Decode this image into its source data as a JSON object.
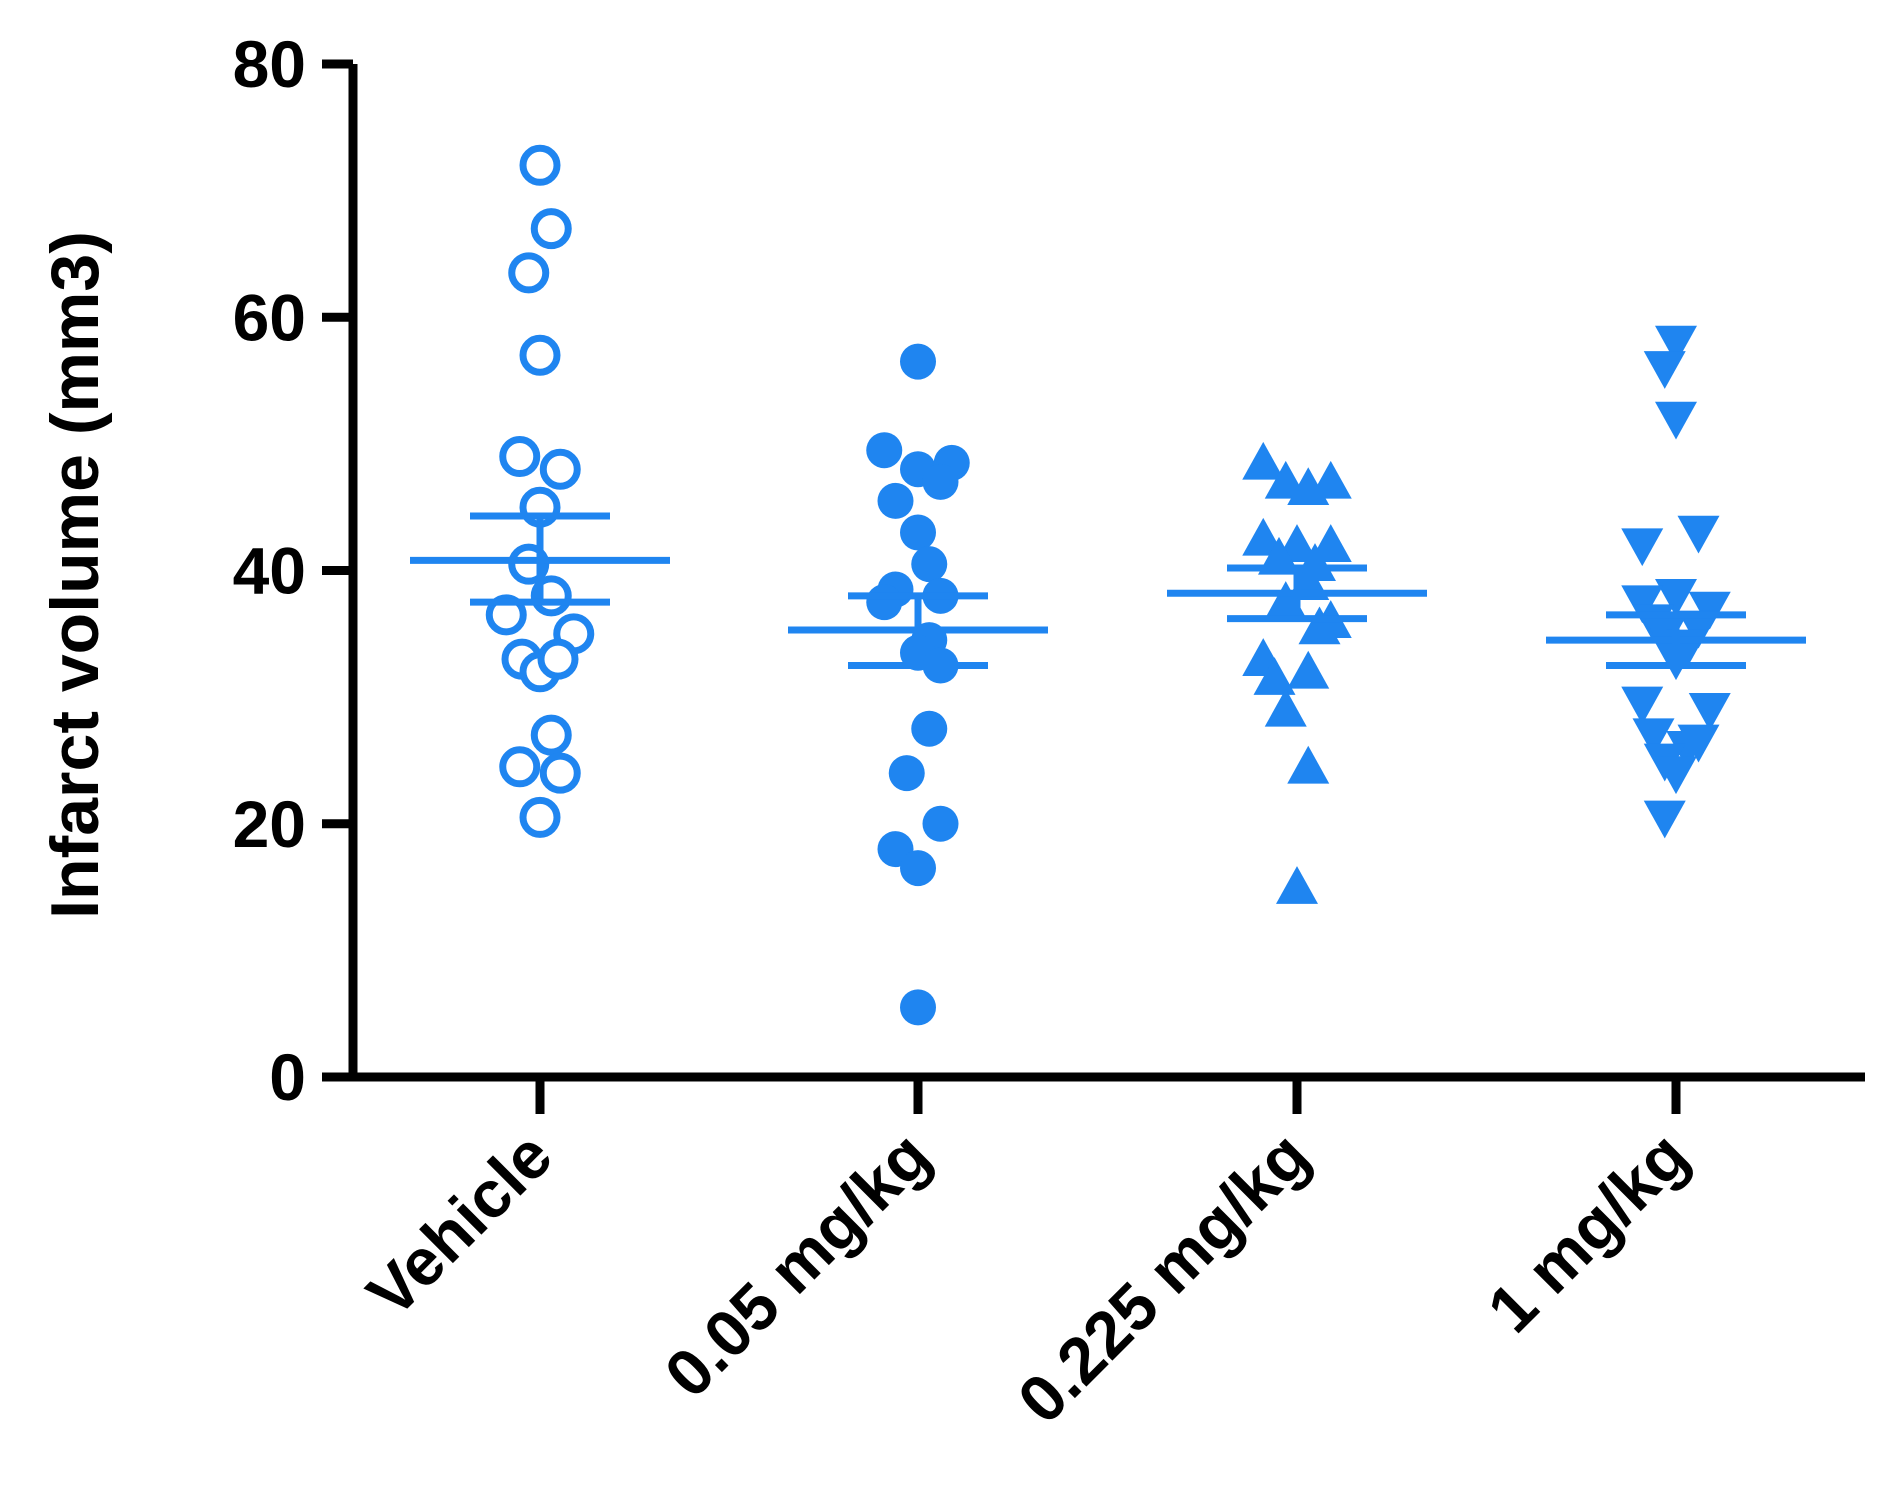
{
  "chart_data": {
    "type": "scatter",
    "title": "",
    "xlabel": "",
    "ylabel": "Infarct volume (mm3)",
    "ylim": [
      0,
      80
    ],
    "yticks": [
      0,
      20,
      40,
      60,
      80
    ],
    "categories": [
      "Vehicle",
      "0.05 mg/kg",
      "0.225 mg/kg",
      "1 mg/kg"
    ],
    "color": "#1f85f0",
    "series": [
      {
        "name": "Vehicle",
        "marker": "circle-open",
        "values": [
          72,
          67,
          63.5,
          57,
          49,
          48,
          45,
          40.5,
          38,
          36.5,
          35,
          33,
          32,
          33,
          27,
          24.5,
          24,
          20.5
        ],
        "offsets": [
          0,
          0.25,
          -0.25,
          0,
          -0.45,
          0.45,
          0,
          -0.25,
          0.25,
          -0.75,
          0.75,
          -0.4,
          0,
          0.4,
          0.25,
          -0.45,
          0.45,
          0
        ],
        "mean": 40.8,
        "sem_low": 37.5,
        "sem_high": 44.3
      },
      {
        "name": "0.05 mg/kg",
        "marker": "circle-filled",
        "values": [
          56.5,
          49.5,
          48,
          48.5,
          47,
          45.5,
          43,
          40.5,
          38.5,
          38,
          37.5,
          34.5,
          33.5,
          32.5,
          27.5,
          24,
          20,
          18,
          16.5,
          5.5
        ],
        "offsets": [
          0,
          -0.75,
          0,
          0.75,
          0.5,
          -0.5,
          0,
          0.25,
          -0.5,
          0.5,
          -0.75,
          0.25,
          0,
          0.5,
          0.25,
          -0.25,
          0.5,
          -0.5,
          0,
          0
        ],
        "mean": 35.3,
        "sem_low": 32.5,
        "sem_high": 38
      },
      {
        "name": "0.225 mg/kg",
        "marker": "triangle-up",
        "values": [
          48.5,
          47,
          47,
          46.5,
          42.5,
          42,
          42,
          41,
          40.5,
          39,
          37.5,
          36,
          35.5,
          33,
          32,
          31.5,
          29,
          24.5,
          15
        ],
        "offsets": [
          -0.75,
          -0.25,
          0.75,
          0.25,
          -0.75,
          0.75,
          0,
          -0.4,
          0.4,
          0.25,
          -0.25,
          0.75,
          0.5,
          -0.75,
          0.25,
          -0.5,
          -0.25,
          0.25,
          0
        ],
        "mean": 38.2,
        "sem_low": 36.2,
        "sem_high": 40.2
      },
      {
        "name": "1 mg/kg",
        "marker": "triangle-down",
        "values": [
          58,
          52,
          56,
          43,
          42,
          38,
          37.5,
          37,
          36,
          35.5,
          35,
          34,
          33,
          29.5,
          29,
          27,
          26.5,
          26,
          25,
          24,
          20.5
        ],
        "offsets": [
          0,
          0,
          -0.25,
          0.5,
          -0.75,
          0,
          -0.75,
          0.75,
          -0.5,
          0.5,
          -0.25,
          0.25,
          0,
          -0.75,
          0.75,
          -0.5,
          0.5,
          0.25,
          -0.25,
          0,
          -0.25
        ],
        "mean": 34.5,
        "sem_low": 32.5,
        "sem_high": 36.5
      }
    ]
  }
}
